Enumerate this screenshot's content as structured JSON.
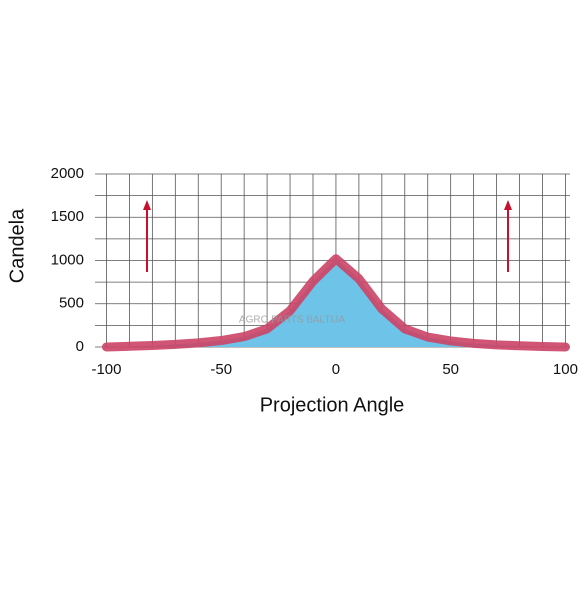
{
  "chart_data": {
    "type": "area",
    "y_label": "Candela",
    "x_label": "Projection Angle",
    "watermark": "AGRO PARTS BALTIJA",
    "x": [
      -100,
      -90,
      -80,
      -70,
      -60,
      -50,
      -40,
      -30,
      -20,
      -10,
      0,
      10,
      20,
      30,
      40,
      50,
      60,
      70,
      80,
      90,
      100
    ],
    "series": [
      {
        "values": [
          0,
          8,
          18,
          30,
          48,
          75,
          120,
          210,
          420,
          760,
          1020,
          790,
          440,
          210,
          115,
          70,
          42,
          25,
          14,
          6,
          0
        ],
        "color": "#cc4466",
        "fill": "#6ec3e8"
      }
    ],
    "xlim": [
      -105,
      102
    ],
    "ylim": [
      0,
      2000
    ],
    "xticks": [
      -100,
      -50,
      0,
      50,
      100
    ],
    "yticks": [
      0,
      500,
      1000,
      1500,
      2000
    ],
    "x_grid": [
      -100,
      -90,
      -80,
      -70,
      -60,
      -50,
      -40,
      -30,
      -20,
      -10,
      0,
      10,
      20,
      30,
      40,
      50,
      60,
      70,
      80,
      90,
      100
    ],
    "y_grid": [
      0,
      250,
      500,
      750,
      1000,
      1250,
      1500,
      1750,
      2000
    ],
    "grid": true
  }
}
